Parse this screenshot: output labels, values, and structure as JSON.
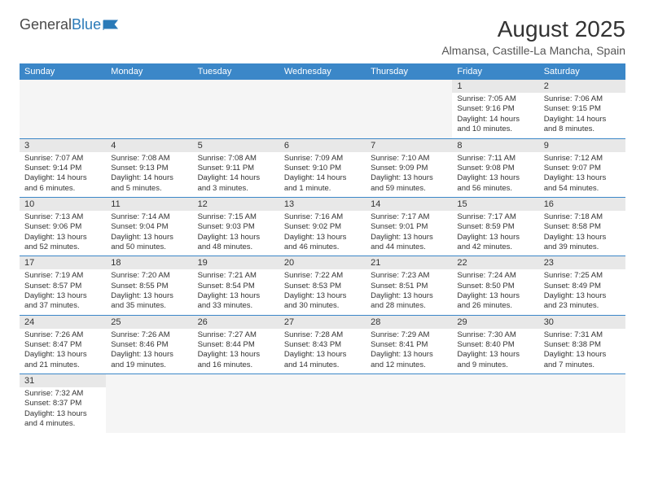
{
  "logo": {
    "part1": "General",
    "part2": "Blue"
  },
  "title": "August 2025",
  "location": "Almansa, Castille-La Mancha, Spain",
  "dayHeaders": [
    "Sunday",
    "Monday",
    "Tuesday",
    "Wednesday",
    "Thursday",
    "Friday",
    "Saturday"
  ],
  "colors": {
    "headerBg": "#3b87c8",
    "headerText": "#ffffff",
    "dayNumBg": "#e8e8e8",
    "borderColor": "#3b87c8",
    "logoBlue": "#2a7ab8"
  },
  "weeks": [
    [
      null,
      null,
      null,
      null,
      null,
      {
        "n": "1",
        "sr": "7:05 AM",
        "ss": "9:16 PM",
        "dl": "14 hours and 10 minutes."
      },
      {
        "n": "2",
        "sr": "7:06 AM",
        "ss": "9:15 PM",
        "dl": "14 hours and 8 minutes."
      }
    ],
    [
      {
        "n": "3",
        "sr": "7:07 AM",
        "ss": "9:14 PM",
        "dl": "14 hours and 6 minutes."
      },
      {
        "n": "4",
        "sr": "7:08 AM",
        "ss": "9:13 PM",
        "dl": "14 hours and 5 minutes."
      },
      {
        "n": "5",
        "sr": "7:08 AM",
        "ss": "9:11 PM",
        "dl": "14 hours and 3 minutes."
      },
      {
        "n": "6",
        "sr": "7:09 AM",
        "ss": "9:10 PM",
        "dl": "14 hours and 1 minute."
      },
      {
        "n": "7",
        "sr": "7:10 AM",
        "ss": "9:09 PM",
        "dl": "13 hours and 59 minutes."
      },
      {
        "n": "8",
        "sr": "7:11 AM",
        "ss": "9:08 PM",
        "dl": "13 hours and 56 minutes."
      },
      {
        "n": "9",
        "sr": "7:12 AM",
        "ss": "9:07 PM",
        "dl": "13 hours and 54 minutes."
      }
    ],
    [
      {
        "n": "10",
        "sr": "7:13 AM",
        "ss": "9:06 PM",
        "dl": "13 hours and 52 minutes."
      },
      {
        "n": "11",
        "sr": "7:14 AM",
        "ss": "9:04 PM",
        "dl": "13 hours and 50 minutes."
      },
      {
        "n": "12",
        "sr": "7:15 AM",
        "ss": "9:03 PM",
        "dl": "13 hours and 48 minutes."
      },
      {
        "n": "13",
        "sr": "7:16 AM",
        "ss": "9:02 PM",
        "dl": "13 hours and 46 minutes."
      },
      {
        "n": "14",
        "sr": "7:17 AM",
        "ss": "9:01 PM",
        "dl": "13 hours and 44 minutes."
      },
      {
        "n": "15",
        "sr": "7:17 AM",
        "ss": "8:59 PM",
        "dl": "13 hours and 42 minutes."
      },
      {
        "n": "16",
        "sr": "7:18 AM",
        "ss": "8:58 PM",
        "dl": "13 hours and 39 minutes."
      }
    ],
    [
      {
        "n": "17",
        "sr": "7:19 AM",
        "ss": "8:57 PM",
        "dl": "13 hours and 37 minutes."
      },
      {
        "n": "18",
        "sr": "7:20 AM",
        "ss": "8:55 PM",
        "dl": "13 hours and 35 minutes."
      },
      {
        "n": "19",
        "sr": "7:21 AM",
        "ss": "8:54 PM",
        "dl": "13 hours and 33 minutes."
      },
      {
        "n": "20",
        "sr": "7:22 AM",
        "ss": "8:53 PM",
        "dl": "13 hours and 30 minutes."
      },
      {
        "n": "21",
        "sr": "7:23 AM",
        "ss": "8:51 PM",
        "dl": "13 hours and 28 minutes."
      },
      {
        "n": "22",
        "sr": "7:24 AM",
        "ss": "8:50 PM",
        "dl": "13 hours and 26 minutes."
      },
      {
        "n": "23",
        "sr": "7:25 AM",
        "ss": "8:49 PM",
        "dl": "13 hours and 23 minutes."
      }
    ],
    [
      {
        "n": "24",
        "sr": "7:26 AM",
        "ss": "8:47 PM",
        "dl": "13 hours and 21 minutes."
      },
      {
        "n": "25",
        "sr": "7:26 AM",
        "ss": "8:46 PM",
        "dl": "13 hours and 19 minutes."
      },
      {
        "n": "26",
        "sr": "7:27 AM",
        "ss": "8:44 PM",
        "dl": "13 hours and 16 minutes."
      },
      {
        "n": "27",
        "sr": "7:28 AM",
        "ss": "8:43 PM",
        "dl": "13 hours and 14 minutes."
      },
      {
        "n": "28",
        "sr": "7:29 AM",
        "ss": "8:41 PM",
        "dl": "13 hours and 12 minutes."
      },
      {
        "n": "29",
        "sr": "7:30 AM",
        "ss": "8:40 PM",
        "dl": "13 hours and 9 minutes."
      },
      {
        "n": "30",
        "sr": "7:31 AM",
        "ss": "8:38 PM",
        "dl": "13 hours and 7 minutes."
      }
    ],
    [
      {
        "n": "31",
        "sr": "7:32 AM",
        "ss": "8:37 PM",
        "dl": "13 hours and 4 minutes."
      },
      null,
      null,
      null,
      null,
      null,
      null
    ]
  ],
  "labels": {
    "sunrise": "Sunrise: ",
    "sunset": "Sunset: ",
    "daylight": "Daylight: "
  }
}
